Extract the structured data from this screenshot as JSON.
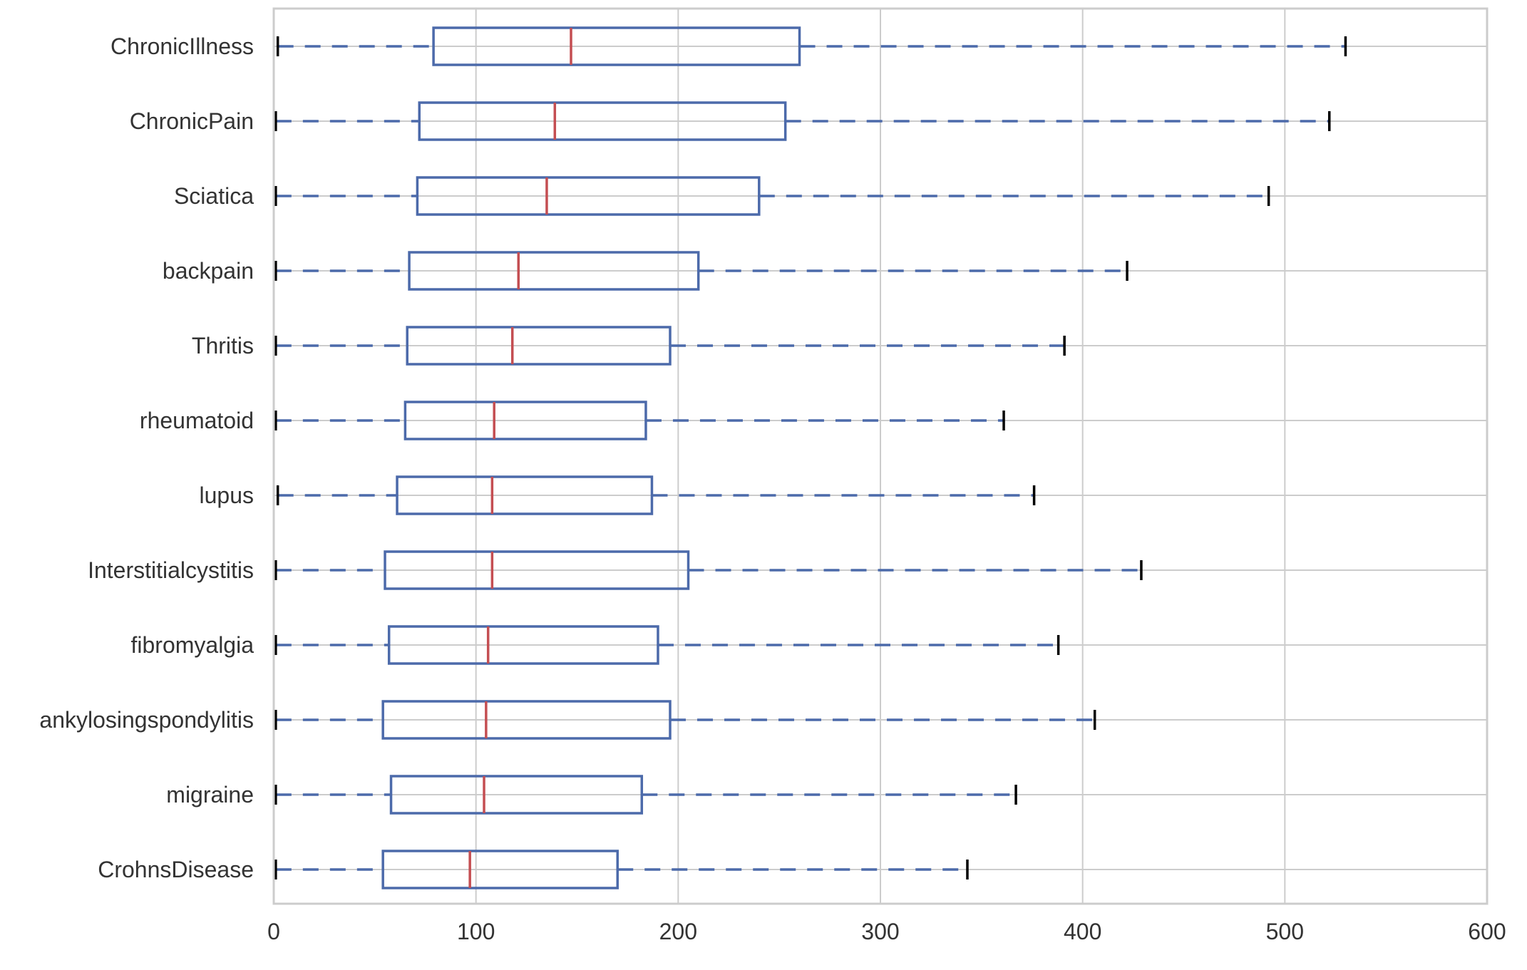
{
  "chart_data": {
    "type": "boxplot",
    "orientation": "horizontal",
    "title": "",
    "xlabel": "",
    "ylabel": "",
    "xlim": [
      0,
      600
    ],
    "xticks": [
      0,
      100,
      200,
      300,
      400,
      500,
      600
    ],
    "grid": true,
    "legend": "none",
    "categories": [
      "ChronicIllness",
      "ChronicPain",
      "Sciatica",
      "backpain",
      "Thritis",
      "rheumatoid",
      "lupus",
      "Interstitialcystitis",
      "fibromyalgia",
      "ankylosingspondylitis",
      "migraine",
      "CrohnsDisease"
    ],
    "boxes": [
      {
        "category": "ChronicIllness",
        "whisker_low": 2,
        "q1": 79,
        "median": 147,
        "q3": 260,
        "whisker_high": 530
      },
      {
        "category": "ChronicPain",
        "whisker_low": 1,
        "q1": 72,
        "median": 139,
        "q3": 253,
        "whisker_high": 522
      },
      {
        "category": "Sciatica",
        "whisker_low": 1,
        "q1": 71,
        "median": 135,
        "q3": 240,
        "whisker_high": 492
      },
      {
        "category": "backpain",
        "whisker_low": 1,
        "q1": 67,
        "median": 121,
        "q3": 210,
        "whisker_high": 422
      },
      {
        "category": "Thritis",
        "whisker_low": 1,
        "q1": 66,
        "median": 118,
        "q3": 196,
        "whisker_high": 391
      },
      {
        "category": "rheumatoid",
        "whisker_low": 1,
        "q1": 65,
        "median": 109,
        "q3": 184,
        "whisker_high": 361
      },
      {
        "category": "lupus",
        "whisker_low": 2,
        "q1": 61,
        "median": 108,
        "q3": 187,
        "whisker_high": 376
      },
      {
        "category": "Interstitialcystitis",
        "whisker_low": 1,
        "q1": 55,
        "median": 108,
        "q3": 205,
        "whisker_high": 429
      },
      {
        "category": "fibromyalgia",
        "whisker_low": 1,
        "q1": 57,
        "median": 106,
        "q3": 190,
        "whisker_high": 388
      },
      {
        "category": "ankylosingspondylitis",
        "whisker_low": 1,
        "q1": 54,
        "median": 105,
        "q3": 196,
        "whisker_high": 406
      },
      {
        "category": "migraine",
        "whisker_low": 1,
        "q1": 58,
        "median": 104,
        "q3": 182,
        "whisker_high": 367
      },
      {
        "category": "CrohnsDisease",
        "whisker_low": 1,
        "q1": 54,
        "median": 97,
        "q3": 170,
        "whisker_high": 343
      }
    ],
    "colors": {
      "box": "#4c6aaa",
      "whisker": "#4c6aaa",
      "median": "#c44e52",
      "cap": "#000000",
      "grid": "#cccccc",
      "frame": "#cccccc",
      "tick_text": "#333333"
    }
  }
}
